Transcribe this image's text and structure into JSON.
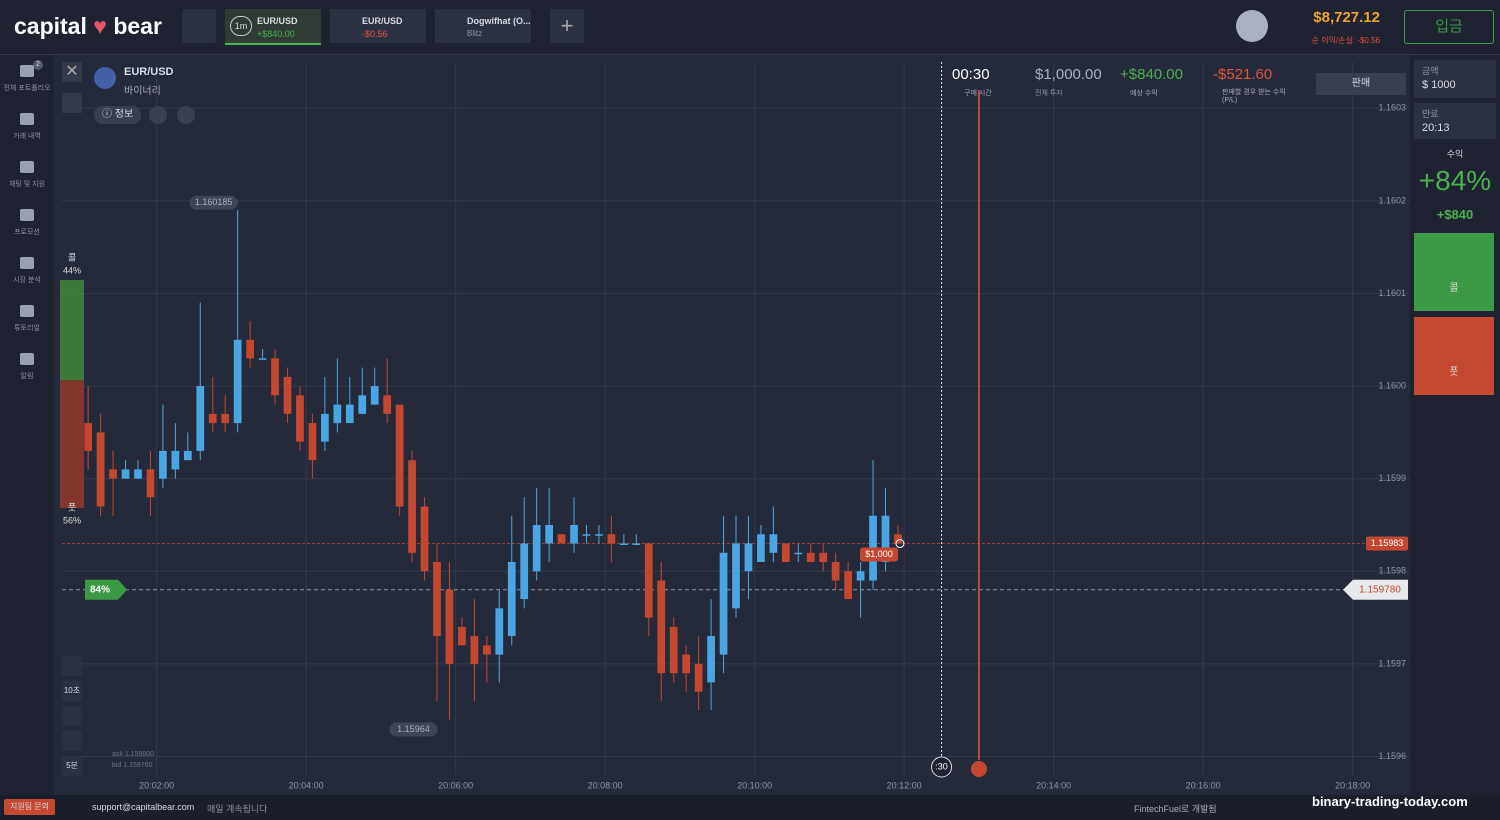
{
  "header": {
    "logo": [
      "capital",
      "bear"
    ],
    "tabs": [
      {
        "badge": "1m",
        "asset": "EUR/USD",
        "pnl": "+$840.00"
      },
      {
        "asset": "EUR/USD",
        "pnl": "-$0.56"
      },
      {
        "asset": "Dogwifhat (O...",
        "sub": "Blitz"
      }
    ],
    "balance": "$8,727.12",
    "net_pl": "순 이익/손실: -$0.56",
    "deposit": "입금"
  },
  "sidebar": {
    "badge": "2",
    "items": [
      "전체 포트폴리오",
      "거래 내역",
      "채팅 및 지원",
      "프로모션",
      "시장 분석",
      "튜토리얼",
      "알림"
    ]
  },
  "asset": {
    "name": "EUR/USD",
    "mode": "바이너리",
    "info": "정보"
  },
  "trade_info": {
    "timer": "00:30",
    "timer_label": "구매 시간",
    "invest": "$1,000.00",
    "invest_label": "전체 투자",
    "payout": "+$840.00",
    "payout_label": "예상 수익",
    "sell_pl": "-$521.60",
    "sell_pl_label": "판매할 경우 받는 수익 (P/L)",
    "sell": "판매"
  },
  "panel": {
    "amount_label": "금액",
    "currency": "$",
    "amount": "1000",
    "expiry_label": "만료",
    "expiry": "20:13",
    "profit_label": "수익",
    "profit_pct": "+84%",
    "profit": "+$840",
    "call": "콜",
    "put": "풋"
  },
  "tools": {
    "interval": "10초",
    "timeframe": "5분",
    "ask": "ask 1.159800",
    "bid": "bid 1.159760",
    "payout_tag": "84%",
    "countdown": ":30"
  },
  "chart_data": {
    "type": "candlestick",
    "up_color": "#4aa6e2",
    "down_color": "#c4482f",
    "grid": true,
    "xlim": [
      44,
      1126
    ],
    "ylim": [
      1.15958,
      1.16035
    ],
    "xticks": [
      {
        "value": 120,
        "label": "20:02:00"
      },
      {
        "value": 240,
        "label": "20:04:00"
      },
      {
        "value": 360,
        "label": "20:06:00"
      },
      {
        "value": 480,
        "label": "20:08:00"
      },
      {
        "value": 600,
        "label": "20:10:00"
      },
      {
        "value": 720,
        "label": "20:12:00"
      },
      {
        "value": 840,
        "label": "20:14:00"
      },
      {
        "value": 960,
        "label": "20:16:00"
      },
      {
        "value": 1080,
        "label": "20:18:00"
      }
    ],
    "yticks": [
      {
        "value": 1.1596,
        "label": "1.1596"
      },
      {
        "value": 1.1597,
        "label": "1.1597"
      },
      {
        "value": 1.1598,
        "label": "1.1598"
      },
      {
        "value": 1.1599,
        "label": "1.1599"
      },
      {
        "value": 1.16,
        "label": "1.1600"
      },
      {
        "value": 1.1601,
        "label": "1.1601"
      },
      {
        "value": 1.1602,
        "label": "1.1602"
      },
      {
        "value": 1.1603,
        "label": "1.1603"
      }
    ],
    "x": [
      65,
      75,
      85,
      95,
      105,
      115,
      125,
      135,
      145,
      155,
      165,
      175,
      185,
      195,
      205,
      215,
      225,
      235,
      245,
      255,
      265,
      275,
      285,
      295,
      305,
      315,
      325,
      335,
      345,
      355,
      365,
      375,
      385,
      395,
      405,
      415,
      425,
      435,
      445,
      455,
      465,
      475,
      485,
      495,
      505,
      515,
      525,
      535,
      545,
      555,
      565,
      575,
      585,
      595,
      605,
      615,
      625,
      635,
      645,
      655,
      665,
      675,
      685,
      695,
      705,
      715
    ],
    "ohlc": [
      [
        1.15996,
        1.16,
        1.15991,
        1.15993
      ],
      [
        1.15995,
        1.15997,
        1.15986,
        1.15987
      ],
      [
        1.15991,
        1.15993,
        1.15986,
        1.1599
      ],
      [
        1.1599,
        1.15992,
        1.1599,
        1.15991
      ],
      [
        1.1599,
        1.15992,
        1.1599,
        1.15991
      ],
      [
        1.15991,
        1.15993,
        1.15986,
        1.15988
      ],
      [
        1.1599,
        1.15998,
        1.15989,
        1.15993
      ],
      [
        1.15991,
        1.15996,
        1.1599,
        1.15993
      ],
      [
        1.15992,
        1.15995,
        1.15992,
        1.15993
      ],
      [
        1.15993,
        1.16009,
        1.15992,
        1.16
      ],
      [
        1.15997,
        1.16001,
        1.15995,
        1.15996
      ],
      [
        1.15997,
        1.15999,
        1.15995,
        1.15996
      ],
      [
        1.15996,
        1.16019,
        1.15995,
        1.16005
      ],
      [
        1.16005,
        1.16007,
        1.16002,
        1.16003
      ],
      [
        1.16003,
        1.16004,
        1.16003,
        1.16003
      ],
      [
        1.16003,
        1.16004,
        1.15998,
        1.15999
      ],
      [
        1.16001,
        1.16002,
        1.15996,
        1.15997
      ],
      [
        1.15999,
        1.16,
        1.15993,
        1.15994
      ],
      [
        1.15996,
        1.15997,
        1.1599,
        1.15992
      ],
      [
        1.15994,
        1.16001,
        1.15993,
        1.15997
      ],
      [
        1.15996,
        1.16003,
        1.15995,
        1.15998
      ],
      [
        1.15996,
        1.16001,
        1.15996,
        1.15998
      ],
      [
        1.15997,
        1.16002,
        1.15997,
        1.15999
      ],
      [
        1.15998,
        1.16002,
        1.15998,
        1.16
      ],
      [
        1.15999,
        1.16003,
        1.15996,
        1.15997
      ],
      [
        1.15998,
        1.15998,
        1.15986,
        1.15987
      ],
      [
        1.15992,
        1.15993,
        1.15981,
        1.15982
      ],
      [
        1.15987,
        1.15988,
        1.15979,
        1.1598
      ],
      [
        1.15981,
        1.15983,
        1.15966,
        1.15973
      ],
      [
        1.15978,
        1.15981,
        1.15964,
        1.1597
      ],
      [
        1.15974,
        1.15975,
        1.15972,
        1.15972
      ],
      [
        1.15973,
        1.15977,
        1.15966,
        1.1597
      ],
      [
        1.15972,
        1.15973,
        1.15968,
        1.15971
      ],
      [
        1.15971,
        1.15978,
        1.15968,
        1.15976
      ],
      [
        1.15973,
        1.15986,
        1.15972,
        1.15981
      ],
      [
        1.15977,
        1.15988,
        1.15976,
        1.15983
      ],
      [
        1.1598,
        1.15989,
        1.15979,
        1.15985
      ],
      [
        1.15983,
        1.15989,
        1.15981,
        1.15985
      ],
      [
        1.15984,
        1.15984,
        1.15983,
        1.15983
      ],
      [
        1.15983,
        1.15988,
        1.15982,
        1.15985
      ],
      [
        1.15984,
        1.15985,
        1.15983,
        1.15984
      ],
      [
        1.15984,
        1.15985,
        1.15983,
        1.15984
      ],
      [
        1.15984,
        1.15986,
        1.15981,
        1.15983
      ],
      [
        1.15983,
        1.15984,
        1.15983,
        1.15983
      ],
      [
        1.15983,
        1.15984,
        1.15983,
        1.15983
      ],
      [
        1.15983,
        1.15983,
        1.15973,
        1.15975
      ],
      [
        1.15979,
        1.15981,
        1.15966,
        1.15969
      ],
      [
        1.15974,
        1.15975,
        1.15968,
        1.15969
      ],
      [
        1.15971,
        1.15972,
        1.15967,
        1.15969
      ],
      [
        1.1597,
        1.15973,
        1.15965,
        1.15967
      ],
      [
        1.15968,
        1.15977,
        1.15965,
        1.15973
      ],
      [
        1.15971,
        1.15986,
        1.15969,
        1.15982
      ],
      [
        1.15976,
        1.15986,
        1.15975,
        1.15983
      ],
      [
        1.1598,
        1.15986,
        1.15977,
        1.15983
      ],
      [
        1.15981,
        1.15985,
        1.15981,
        1.15984
      ],
      [
        1.15982,
        1.15987,
        1.15981,
        1.15984
      ],
      [
        1.15983,
        1.15983,
        1.15981,
        1.15981
      ],
      [
        1.15982,
        1.15983,
        1.15981,
        1.15982
      ],
      [
        1.15982,
        1.15983,
        1.15981,
        1.15981
      ],
      [
        1.15982,
        1.15983,
        1.1598,
        1.15981
      ],
      [
        1.15981,
        1.15982,
        1.15978,
        1.15979
      ],
      [
        1.1598,
        1.15981,
        1.15977,
        1.15977
      ],
      [
        1.15979,
        1.15981,
        1.15975,
        1.1598
      ],
      [
        1.15979,
        1.15992,
        1.15978,
        1.15986
      ],
      [
        1.15981,
        1.15989,
        1.1598,
        1.15986
      ],
      [
        1.15984,
        1.15985,
        1.15983,
        1.15983
      ]
    ],
    "high_label": 1.160185,
    "low_label": 1.15964,
    "entry_price": 1.15983,
    "entry_amount": "$1,000",
    "current_price": {
      "value": 1.15978,
      "label": "1.159780"
    },
    "purchase_x": 750,
    "expiry_x": 780,
    "sentiment": {
      "categories": [
        "콜",
        "풋"
      ],
      "values": [
        44,
        56
      ],
      "value_labels": [
        "44%",
        "56%"
      ],
      "colors": [
        "#3f8f3a",
        "#9b3a2a"
      ]
    }
  },
  "footer": {
    "support": "지원팀 문의",
    "email": "support@capitalbear.com",
    "daily": "매일 계속됩니다",
    "dev": "FintechFuel로 개발됨",
    "watermark": "binary-trading-today.com"
  }
}
